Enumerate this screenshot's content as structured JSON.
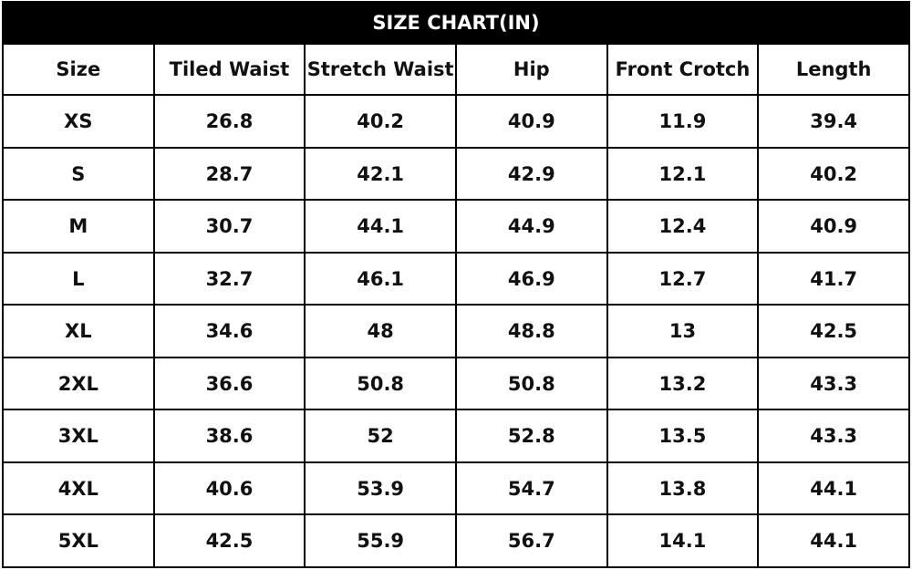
{
  "table": {
    "title": "SIZE CHART(IN)",
    "header": [
      "Size",
      "Tiled Waist",
      "Stretch Waist",
      "Hip",
      "Front Crotch",
      "Length"
    ],
    "rows": [
      [
        "XS",
        "26.8",
        "40.2",
        "40.9",
        "11.9",
        "39.4"
      ],
      [
        "S",
        "28.7",
        "42.1",
        "42.9",
        "12.1",
        "40.2"
      ],
      [
        "M",
        "30.7",
        "44.1",
        "44.9",
        "12.4",
        "40.9"
      ],
      [
        "L",
        "32.7",
        "46.1",
        "46.9",
        "12.7",
        "41.7"
      ],
      [
        "XL",
        "34.6",
        "48",
        "48.8",
        "13",
        "42.5"
      ],
      [
        "2XL",
        "36.6",
        "50.8",
        "50.8",
        "13.2",
        "43.3"
      ],
      [
        "3XL",
        "38.6",
        "52",
        "52.8",
        "13.5",
        "43.3"
      ],
      [
        "4XL",
        "40.6",
        "53.9",
        "54.7",
        "13.8",
        "44.1"
      ],
      [
        "5XL",
        "42.5",
        "55.9",
        "56.7",
        "14.1",
        "44.1"
      ]
    ]
  }
}
